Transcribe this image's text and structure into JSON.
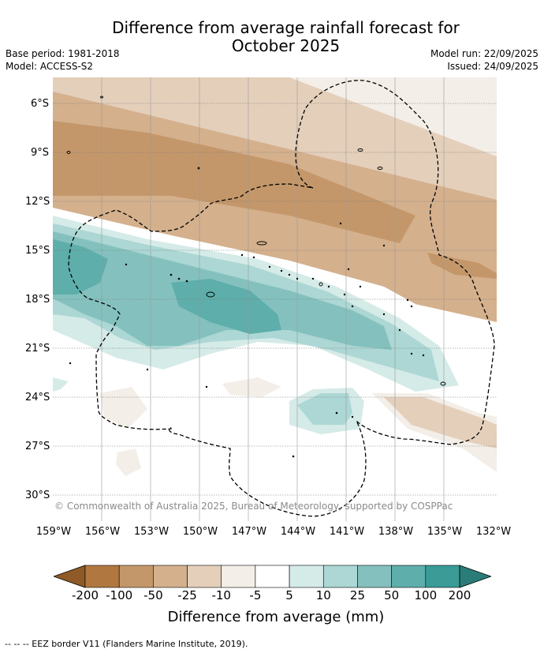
{
  "title_line1": "Difference from average rainfall forecast for",
  "title_line2": "October 2025",
  "meta": {
    "base_period": "Base period: 1981-2018",
    "model": "Model: ACCESS-S2",
    "model_run": "Model run: 22/09/2025",
    "issued": "Issued: 24/09/2025"
  },
  "axes": {
    "lat_labels": [
      "6°S",
      "9°S",
      "12°S",
      "15°S",
      "18°S",
      "21°S",
      "24°S",
      "27°S",
      "30°S"
    ],
    "lon_labels": [
      "159°W",
      "156°W",
      "153°W",
      "150°W",
      "147°W",
      "144°W",
      "141°W",
      "138°W",
      "135°W",
      "132°W"
    ]
  },
  "copyright": "© Commonwealth of Australia 2025, Bureau of Meteorology, supported by COSPPac",
  "colorbar": {
    "ticks": [
      "-200",
      "-100",
      "-50",
      "-25",
      "-10",
      "-5",
      "5",
      "10",
      "25",
      "50",
      "100",
      "200"
    ],
    "colors": [
      "#8f5a27",
      "#b07840",
      "#c4976a",
      "#d4b08d",
      "#e4cfbb",
      "#f3eee7",
      "#ffffff",
      "#d5ebe8",
      "#acd7d4",
      "#84c1be",
      "#5eaeab",
      "#3a9b97",
      "#2b7c78"
    ],
    "title": "Difference from average (mm)"
  },
  "footer": "--  --  -- EEZ border V11 (Flanders Marine Institute, 2019)."
}
